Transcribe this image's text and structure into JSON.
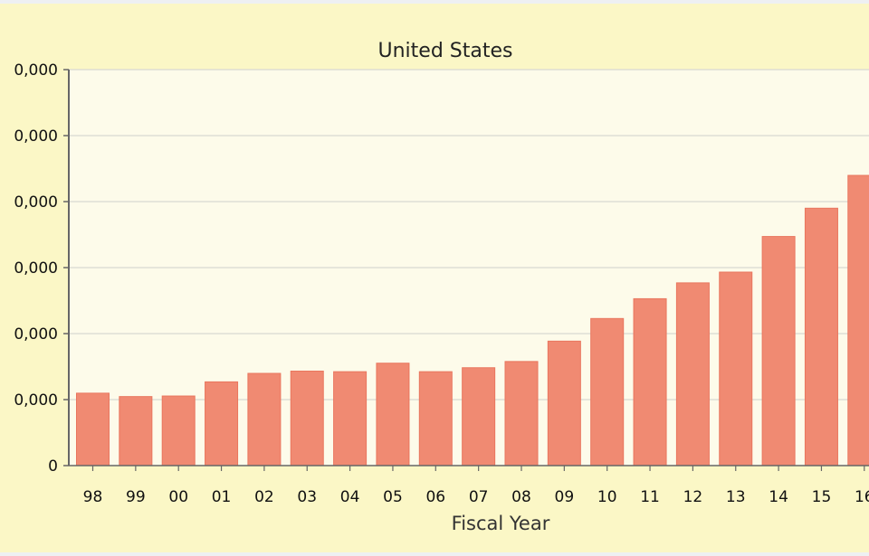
{
  "chart_data": {
    "type": "bar",
    "title": "United States",
    "xlabel": "Fiscal Year",
    "ylabel": "",
    "categories": [
      "98",
      "99",
      "00",
      "01",
      "02",
      "03",
      "04",
      "05",
      "06",
      "07",
      "08",
      "09",
      "10",
      "11",
      "12",
      "13",
      "14",
      "15",
      "16"
    ],
    "values": [
      12800,
      12200,
      12300,
      14800,
      16300,
      16700,
      16600,
      18100,
      16600,
      17300,
      18400,
      22000,
      26000,
      29500,
      32300,
      34200,
      40500,
      45500,
      51300
    ],
    "ylim": [
      0,
      70000
    ],
    "yticks": [
      "0,000",
      "0,000",
      "0,000",
      "0,000",
      "0,000",
      "0,000",
      "0"
    ],
    "grid": true,
    "bar_color": "#f08a72",
    "plot_background": "#fdfbea",
    "frame_background": "#fbf7c6"
  }
}
